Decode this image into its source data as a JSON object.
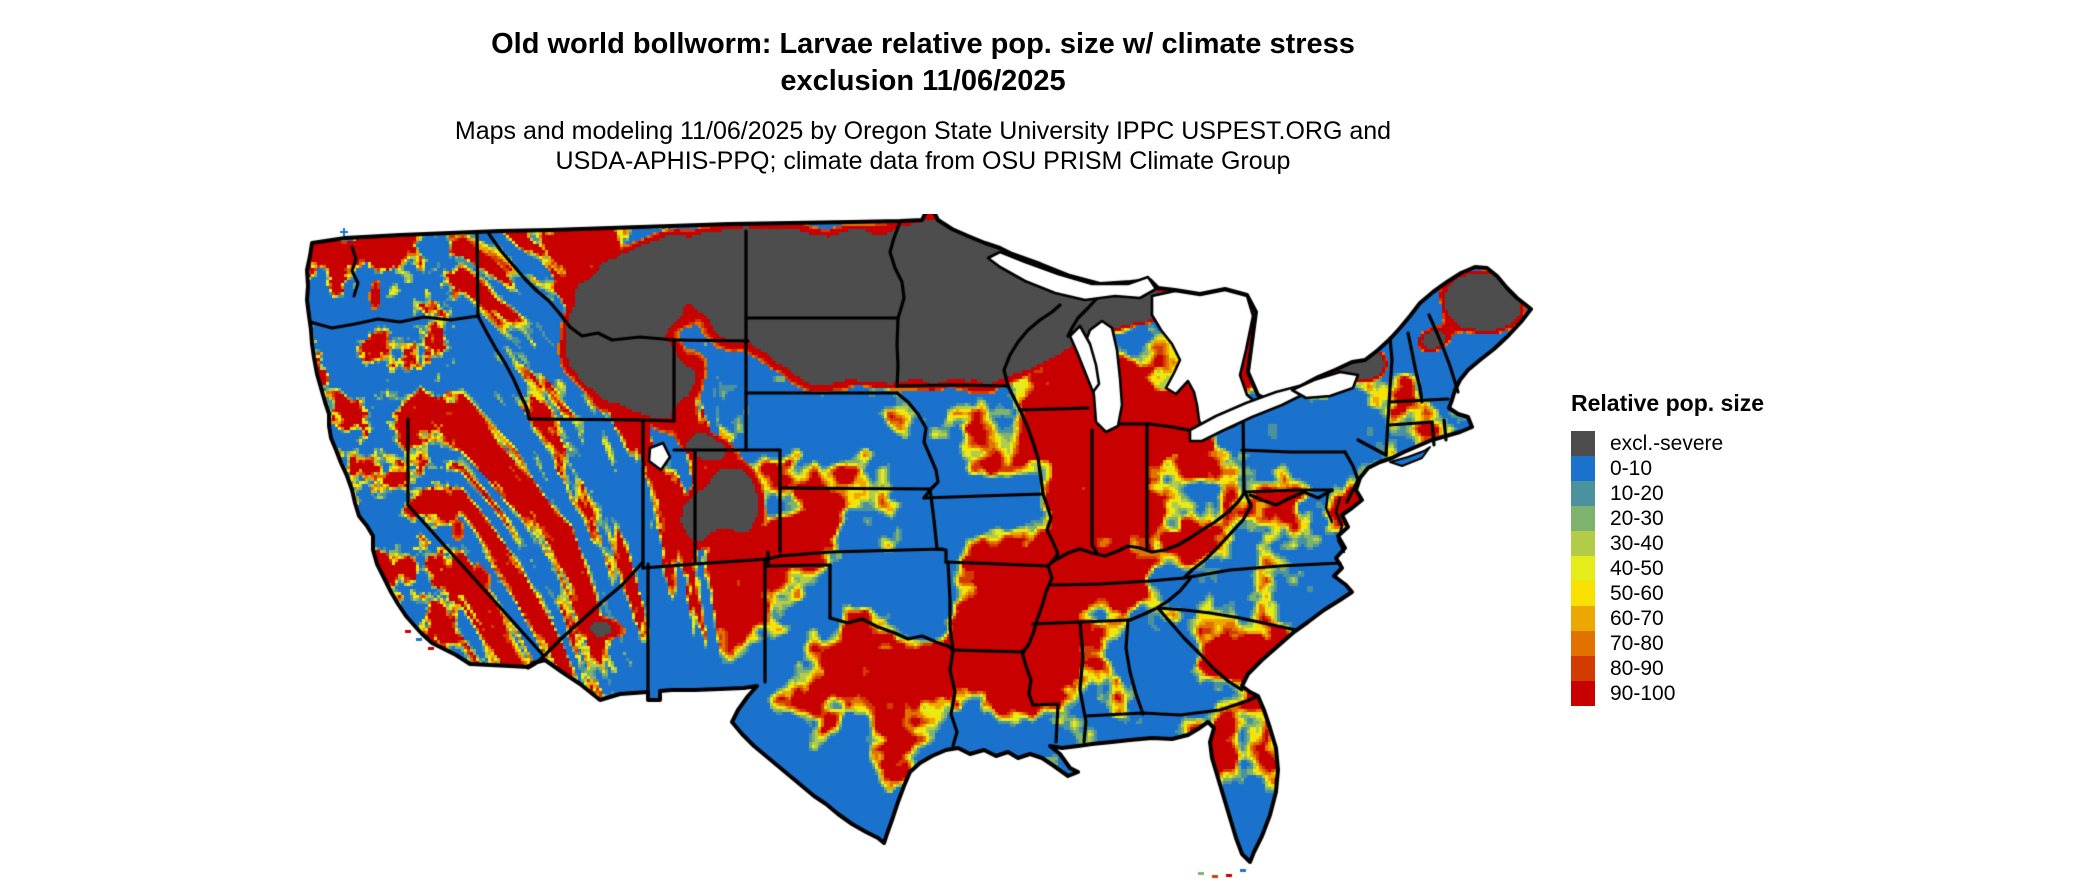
{
  "header": {
    "title_line1": "Old world bollworm: Larvae relative pop. size w/ climate stress",
    "title_line2": "exclusion 11/06/2025",
    "subtitle_line1": "Maps and modeling 11/06/2025 by Oregon State University IPPC USPEST.ORG and",
    "subtitle_line2": "USDA-APHIS-PPQ; climate data from OSU PRISM Climate Group"
  },
  "legend": {
    "title": "Relative pop. size",
    "items": [
      {
        "label": "excl.-severe",
        "color": "#4d4d4d"
      },
      {
        "label": "0-10",
        "color": "#1b72cc"
      },
      {
        "label": "10-20",
        "color": "#4b929f"
      },
      {
        "label": "20-30",
        "color": "#7eb36f"
      },
      {
        "label": "30-40",
        "color": "#b2cc4a"
      },
      {
        "label": "40-50",
        "color": "#e4ec1a"
      },
      {
        "label": "50-60",
        "color": "#f8e000"
      },
      {
        "label": "60-70",
        "color": "#eca800"
      },
      {
        "label": "70-80",
        "color": "#e27200"
      },
      {
        "label": "80-90",
        "color": "#d43b00"
      },
      {
        "label": "90-100",
        "color": "#c80000"
      }
    ]
  },
  "map": {
    "water_color": "#ffffff",
    "boundary_color": "#000000",
    "background_color": "#ffffff"
  }
}
